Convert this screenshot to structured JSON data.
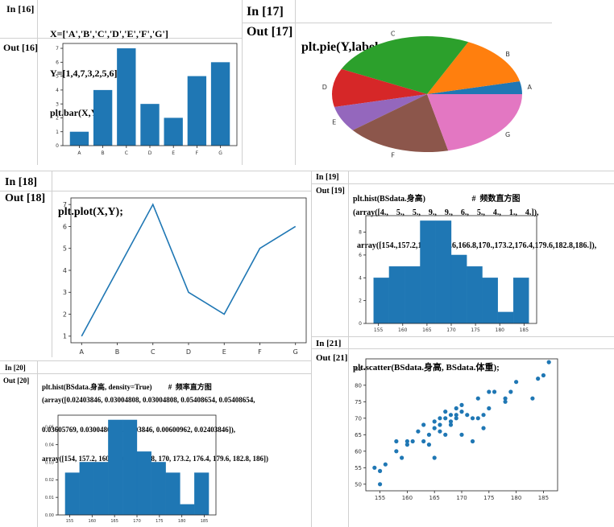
{
  "cells": [
    {
      "id": "16",
      "in_label": "In    [16]",
      "out_label": "Out [16]",
      "code": [
        "X=['A','B','C','D','E','F','G']",
        "Y=[1,4,7,3,2,5,6]",
        "plt.bar(X,Y);"
      ]
    },
    {
      "id": "17",
      "in_label": "In    [17]",
      "out_label": "Out [17]",
      "code": [
        "plt.pie(Y,labels=X);"
      ]
    },
    {
      "id": "18",
      "in_label": "In    [18]",
      "out_label": "Out [18]",
      "code": [
        "plt.plot(X,Y);"
      ]
    },
    {
      "id": "19",
      "in_label": "In    [19]",
      "out_label": "Out [19]",
      "code": [
        "plt.hist(BSdata.身高)                       #  频数直方图"
      ],
      "output": [
        "(array([4.,    5.,    5.,    9.,    9.,    6.,    5.,    4.,    1.,    4.]),",
        "  array([154.,157.2,160.4,163.6,166.8,170.,173.2,176.4,179.6,182.8,186.]),"
      ]
    },
    {
      "id": "20",
      "in_label": "In    [20]",
      "out_label": "Out [20]",
      "code": [
        "plt.hist(BSdata.身高, density=True)         #  频率直方图"
      ],
      "output": [
        "(array([0.02403846, 0.03004808, 0.03004808, 0.05408654, 0.05408654,",
        "0.03605769, 0.03004808, 0.02403846, 0.00600962, 0.02403846]),",
        "array([154, 157.2, 160.4, 163.6, 166.8, 170, 173.2, 176.4, 179.6, 182.8, 186])"
      ]
    },
    {
      "id": "21",
      "in_label": "In    [21]",
      "out_label": "Out [21]",
      "code": [
        "plt.scatter(BSdata.身高, BSdata.体重);"
      ]
    }
  ],
  "colors": {
    "blue": "#1f77b4",
    "orange": "#ff7f0e",
    "green": "#2ca02c",
    "red": "#d62728",
    "purple": "#9467bd",
    "brown": "#8c564b",
    "pink": "#e377c2"
  },
  "chart_data": [
    {
      "cell": "16",
      "type": "bar",
      "categories": [
        "A",
        "B",
        "C",
        "D",
        "E",
        "F",
        "G"
      ],
      "values": [
        1,
        4,
        7,
        3,
        2,
        5,
        6
      ],
      "ylim": [
        0,
        7.35
      ],
      "yticks": [
        0,
        1,
        2,
        3,
        4,
        5,
        6,
        7
      ]
    },
    {
      "cell": "17",
      "type": "pie",
      "categories": [
        "A",
        "B",
        "C",
        "D",
        "E",
        "F",
        "G"
      ],
      "values": [
        1,
        4,
        7,
        3,
        2,
        5,
        6
      ]
    },
    {
      "cell": "18",
      "type": "line",
      "categories": [
        "A",
        "B",
        "C",
        "D",
        "E",
        "F",
        "G"
      ],
      "values": [
        1,
        4,
        7,
        3,
        2,
        5,
        6
      ],
      "ylim": [
        0.7,
        7.3
      ],
      "yticks": [
        1,
        2,
        3,
        4,
        5,
        6,
        7
      ]
    },
    {
      "cell": "19",
      "type": "bar",
      "bin_edges": [
        154,
        157.2,
        160.4,
        163.6,
        166.8,
        170,
        173.2,
        176.4,
        179.6,
        182.8,
        186
      ],
      "values": [
        4,
        5,
        5,
        9,
        9,
        6,
        5,
        4,
        1,
        4
      ],
      "xlim": [
        152.4,
        187.6
      ],
      "ylim": [
        0,
        9.45
      ],
      "yticks": [
        0,
        2,
        4,
        6,
        8
      ],
      "xticks": [
        155,
        160,
        165,
        170,
        175,
        180,
        185
      ]
    },
    {
      "cell": "20",
      "type": "bar",
      "bin_edges": [
        154,
        157.2,
        160.4,
        163.6,
        166.8,
        170,
        173.2,
        176.4,
        179.6,
        182.8,
        186
      ],
      "values": [
        0.02403846,
        0.03004808,
        0.03004808,
        0.05408654,
        0.05408654,
        0.03605769,
        0.03004808,
        0.02403846,
        0.00600962,
        0.02403846
      ],
      "xlim": [
        152.4,
        187.6
      ],
      "ylim": [
        0,
        0.0568
      ],
      "yticks": [
        0.0,
        0.01,
        0.02,
        0.03,
        0.04,
        0.05
      ],
      "ytick_labels": [
        "0.00",
        "0.01",
        "0.02",
        "0.03",
        "0.04",
        "0.05"
      ],
      "xticks": [
        155,
        160,
        165,
        170,
        175,
        180,
        185
      ]
    },
    {
      "cell": "21",
      "type": "scatter",
      "xlim": [
        152.4,
        187.6
      ],
      "ylim": [
        48,
        88
      ],
      "xticks": [
        155,
        160,
        165,
        170,
        175,
        180,
        185
      ],
      "yticks": [
        50,
        55,
        60,
        65,
        70,
        75,
        80,
        85
      ],
      "x": [
        154,
        155,
        155,
        156,
        158,
        158,
        159,
        160,
        160,
        161,
        162,
        163,
        163,
        164,
        164,
        165,
        165,
        165,
        166,
        166,
        166,
        167,
        167,
        167,
        168,
        168,
        168,
        169,
        169,
        169,
        170,
        170,
        170,
        171,
        172,
        172,
        173,
        173,
        174,
        174,
        175,
        175,
        176,
        178,
        178,
        179,
        180,
        183,
        184,
        185,
        186
      ],
      "y": [
        55,
        50,
        54,
        56,
        60,
        63,
        58,
        62,
        63,
        63,
        66,
        63,
        68,
        62,
        65,
        58,
        67,
        69,
        66,
        70,
        68,
        72,
        70,
        65,
        71,
        68,
        69,
        70,
        73,
        71,
        72,
        74,
        65,
        71,
        70,
        63,
        70,
        76,
        71,
        67,
        73,
        78,
        78,
        76,
        75,
        78,
        81,
        76,
        82,
        83,
        87
      ]
    }
  ]
}
